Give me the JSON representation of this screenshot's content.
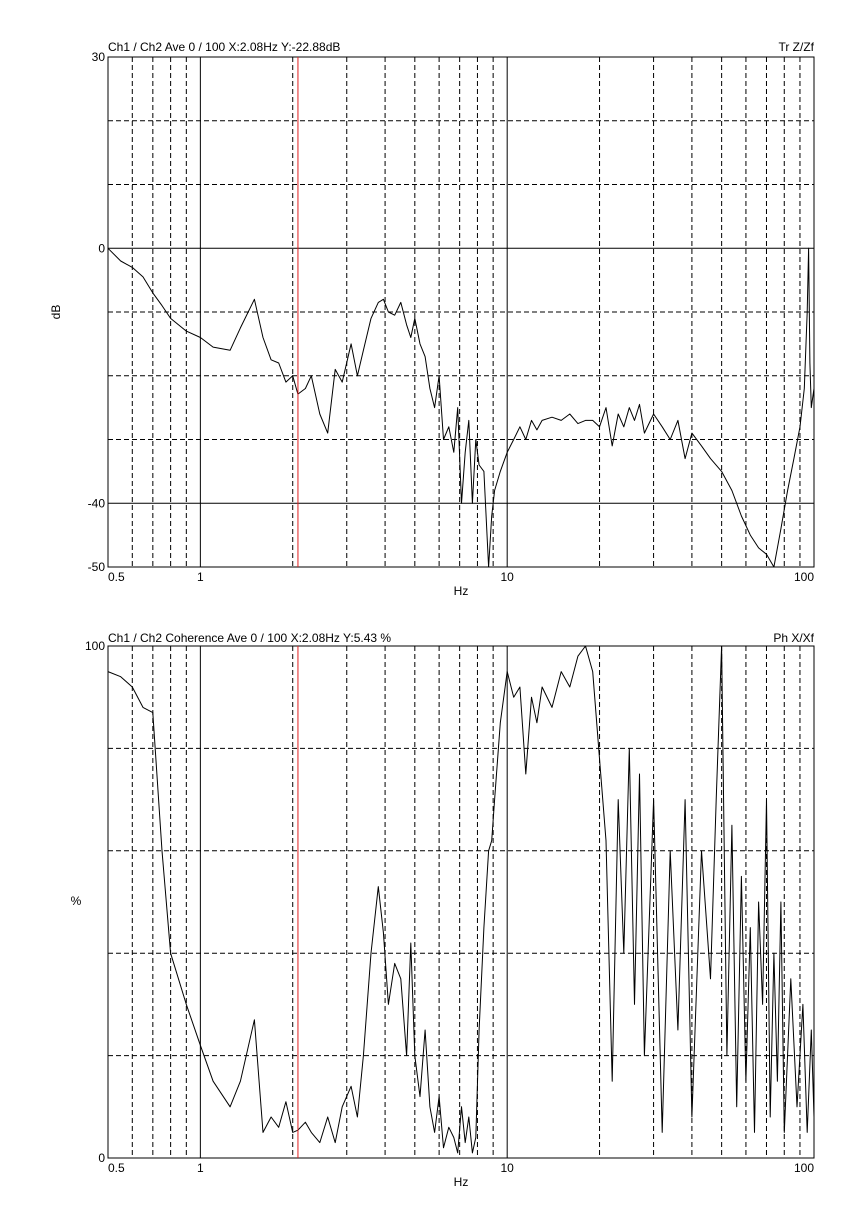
{
  "chart_data": [
    {
      "type": "line",
      "header": "Ch1 / Ch2  Ave 0 / 100  X:2.08Hz  Y:-22.88dB",
      "tag": "Tr Z/Zf",
      "xlabel": "Hz",
      "ylabel": "dB",
      "xscale": "log",
      "xlim": [
        0.5,
        100
      ],
      "ylim": [
        -50,
        30
      ],
      "x_ticks": [
        {
          "value": 0.5,
          "label": "0.5"
        },
        {
          "value": 1,
          "label": "1"
        },
        {
          "value": 10,
          "label": "10"
        },
        {
          "value": 100,
          "label": "100"
        }
      ],
      "y_ticks": [
        {
          "value": 30,
          "label": "30"
        },
        {
          "value": 0,
          "label": "0"
        },
        {
          "value": -40,
          "label": "-40"
        },
        {
          "value": -50,
          "label": "-50"
        }
      ],
      "grid_solid_y": [
        0,
        -40
      ],
      "grid_dashed_y": [
        20,
        10,
        -10,
        -20,
        -30
      ],
      "cursor_x": 2.08,
      "cursor_color": "#e02020",
      "line_color": "#000000",
      "points": [
        [
          0.5,
          0
        ],
        [
          0.55,
          -2
        ],
        [
          0.6,
          -3
        ],
        [
          0.65,
          -4.5
        ],
        [
          0.7,
          -7
        ],
        [
          0.75,
          -9
        ],
        [
          0.8,
          -11
        ],
        [
          0.9,
          -13
        ],
        [
          1.0,
          -14
        ],
        [
          1.1,
          -15.5
        ],
        [
          1.25,
          -16
        ],
        [
          1.35,
          -12.5
        ],
        [
          1.5,
          -8
        ],
        [
          1.6,
          -14
        ],
        [
          1.7,
          -17.5
        ],
        [
          1.8,
          -18
        ],
        [
          1.9,
          -21
        ],
        [
          2.0,
          -20
        ],
        [
          2.08,
          -22.88
        ],
        [
          2.2,
          -22
        ],
        [
          2.3,
          -20
        ],
        [
          2.45,
          -26
        ],
        [
          2.6,
          -29
        ],
        [
          2.75,
          -19
        ],
        [
          2.9,
          -21
        ],
        [
          3.1,
          -15
        ],
        [
          3.25,
          -20
        ],
        [
          3.4,
          -16
        ],
        [
          3.6,
          -11
        ],
        [
          3.8,
          -8.5
        ],
        [
          3.95,
          -8
        ],
        [
          4.1,
          -10
        ],
        [
          4.3,
          -10.5
        ],
        [
          4.5,
          -8.5
        ],
        [
          4.7,
          -12
        ],
        [
          4.85,
          -14
        ],
        [
          5.0,
          -11
        ],
        [
          5.2,
          -15
        ],
        [
          5.4,
          -17
        ],
        [
          5.6,
          -22
        ],
        [
          5.8,
          -25
        ],
        [
          6.0,
          -20
        ],
        [
          6.2,
          -30
        ],
        [
          6.45,
          -28
        ],
        [
          6.7,
          -32
        ],
        [
          6.9,
          -25
        ],
        [
          7.1,
          -40
        ],
        [
          7.3,
          -32
        ],
        [
          7.5,
          -27
        ],
        [
          7.7,
          -40
        ],
        [
          7.9,
          -30
        ],
        [
          8.1,
          -34
        ],
        [
          8.4,
          -35
        ],
        [
          8.7,
          -50
        ],
        [
          8.9,
          -42
        ],
        [
          9.1,
          -38
        ],
        [
          9.5,
          -35
        ],
        [
          10.0,
          -32
        ],
        [
          10.5,
          -30
        ],
        [
          11.0,
          -28
        ],
        [
          11.5,
          -30
        ],
        [
          12.0,
          -27
        ],
        [
          12.5,
          -28.5
        ],
        [
          13.0,
          -27
        ],
        [
          14.0,
          -26.5
        ],
        [
          15.0,
          -27
        ],
        [
          16.0,
          -26
        ],
        [
          17.0,
          -27.5
        ],
        [
          18.0,
          -27
        ],
        [
          19.0,
          -27
        ],
        [
          20.0,
          -28
        ],
        [
          21.0,
          -25
        ],
        [
          22.0,
          -31
        ],
        [
          23.0,
          -26
        ],
        [
          24.0,
          -28
        ],
        [
          25.0,
          -25
        ],
        [
          26.0,
          -27
        ],
        [
          27.0,
          -24.5
        ],
        [
          28.0,
          -29
        ],
        [
          30.0,
          -26
        ],
        [
          32.0,
          -28
        ],
        [
          34.0,
          -30
        ],
        [
          36.0,
          -27
        ],
        [
          38.0,
          -33
        ],
        [
          40.0,
          -29
        ],
        [
          43.0,
          -31
        ],
        [
          46.0,
          -33
        ],
        [
          50.0,
          -35
        ],
        [
          54.0,
          -38
        ],
        [
          58.0,
          -42
        ],
        [
          62.0,
          -45
        ],
        [
          66.0,
          -47
        ],
        [
          70.0,
          -48
        ],
        [
          74.0,
          -50
        ],
        [
          78.0,
          -44
        ],
        [
          82.0,
          -38
        ],
        [
          86.0,
          -33
        ],
        [
          90.0,
          -28
        ],
        [
          93.0,
          -22
        ],
        [
          95.0,
          -10
        ],
        [
          96.0,
          0
        ],
        [
          97.0,
          -18
        ],
        [
          98.0,
          -25
        ],
        [
          100.0,
          -22
        ]
      ]
    },
    {
      "type": "line",
      "header": "Ch1 / Ch2  Coherence Ave 0 / 100  X:2.08Hz  Y:5.43 %",
      "tag": "Ph X/Xf",
      "xlabel": "Hz",
      "ylabel": "%",
      "xscale": "log",
      "xlim": [
        0.5,
        100
      ],
      "ylim": [
        0,
        100
      ],
      "x_ticks": [
        {
          "value": 0.5,
          "label": "0.5"
        },
        {
          "value": 1,
          "label": "1"
        },
        {
          "value": 10,
          "label": "10"
        },
        {
          "value": 100,
          "label": "100"
        }
      ],
      "y_ticks": [
        {
          "value": 100,
          "label": "100"
        },
        {
          "value": 0,
          "label": "0"
        }
      ],
      "grid_solid_y": [],
      "grid_dashed_y": [
        80,
        60,
        40,
        20
      ],
      "cursor_x": 2.08,
      "cursor_color": "#e02020",
      "line_color": "#000000",
      "points": [
        [
          0.5,
          95
        ],
        [
          0.55,
          94
        ],
        [
          0.6,
          92
        ],
        [
          0.65,
          88
        ],
        [
          0.7,
          87
        ],
        [
          0.75,
          60
        ],
        [
          0.8,
          40
        ],
        [
          0.9,
          30
        ],
        [
          1.0,
          22
        ],
        [
          1.1,
          15
        ],
        [
          1.25,
          10
        ],
        [
          1.35,
          15
        ],
        [
          1.5,
          27
        ],
        [
          1.6,
          5
        ],
        [
          1.7,
          8
        ],
        [
          1.8,
          6
        ],
        [
          1.9,
          11
        ],
        [
          2.0,
          5
        ],
        [
          2.08,
          5.43
        ],
        [
          2.2,
          7
        ],
        [
          2.3,
          5
        ],
        [
          2.45,
          3
        ],
        [
          2.6,
          8
        ],
        [
          2.75,
          3
        ],
        [
          2.9,
          10
        ],
        [
          3.1,
          14
        ],
        [
          3.25,
          8
        ],
        [
          3.4,
          20
        ],
        [
          3.6,
          40
        ],
        [
          3.8,
          53
        ],
        [
          3.95,
          44
        ],
        [
          4.1,
          30
        ],
        [
          4.3,
          38
        ],
        [
          4.5,
          35
        ],
        [
          4.7,
          20
        ],
        [
          4.85,
          42
        ],
        [
          5.0,
          20
        ],
        [
          5.2,
          12
        ],
        [
          5.4,
          25
        ],
        [
          5.6,
          10
        ],
        [
          5.8,
          5
        ],
        [
          6.0,
          12
        ],
        [
          6.2,
          2
        ],
        [
          6.45,
          6
        ],
        [
          6.7,
          4
        ],
        [
          6.9,
          1
        ],
        [
          7.1,
          10
        ],
        [
          7.3,
          3
        ],
        [
          7.5,
          8
        ],
        [
          7.7,
          1
        ],
        [
          7.9,
          4
        ],
        [
          8.1,
          25
        ],
        [
          8.4,
          45
        ],
        [
          8.7,
          60
        ],
        [
          8.9,
          62
        ],
        [
          9.1,
          70
        ],
        [
          9.5,
          85
        ],
        [
          10.0,
          95
        ],
        [
          10.5,
          90
        ],
        [
          11.0,
          92
        ],
        [
          11.5,
          75
        ],
        [
          12.0,
          90
        ],
        [
          12.5,
          85
        ],
        [
          13.0,
          92
        ],
        [
          14.0,
          88
        ],
        [
          15.0,
          95
        ],
        [
          16.0,
          92
        ],
        [
          17.0,
          98
        ],
        [
          18.0,
          100
        ],
        [
          19.0,
          95
        ],
        [
          20.0,
          78
        ],
        [
          21.0,
          62
        ],
        [
          22.0,
          15
        ],
        [
          23.0,
          70
        ],
        [
          24.0,
          40
        ],
        [
          25.0,
          80
        ],
        [
          26.0,
          30
        ],
        [
          27.0,
          75
        ],
        [
          28.0,
          20
        ],
        [
          30.0,
          70
        ],
        [
          32.0,
          5
        ],
        [
          34.0,
          60
        ],
        [
          36.0,
          25
        ],
        [
          38.0,
          70
        ],
        [
          40.0,
          8
        ],
        [
          43.0,
          60
        ],
        [
          46.0,
          35
        ],
        [
          48.0,
          70
        ],
        [
          50.0,
          100
        ],
        [
          52.0,
          20
        ],
        [
          54.0,
          65
        ],
        [
          56.0,
          10
        ],
        [
          58.0,
          55
        ],
        [
          60.0,
          15
        ],
        [
          62.0,
          45
        ],
        [
          64.0,
          5
        ],
        [
          66.0,
          50
        ],
        [
          68.0,
          30
        ],
        [
          70.0,
          70
        ],
        [
          72.0,
          8
        ],
        [
          74.0,
          40
        ],
        [
          76.0,
          15
        ],
        [
          78.0,
          50
        ],
        [
          80.0,
          5
        ],
        [
          84.0,
          35
        ],
        [
          88.0,
          10
        ],
        [
          92.0,
          30
        ],
        [
          95.0,
          5
        ],
        [
          98.0,
          25
        ],
        [
          100.0,
          8
        ]
      ]
    }
  ]
}
